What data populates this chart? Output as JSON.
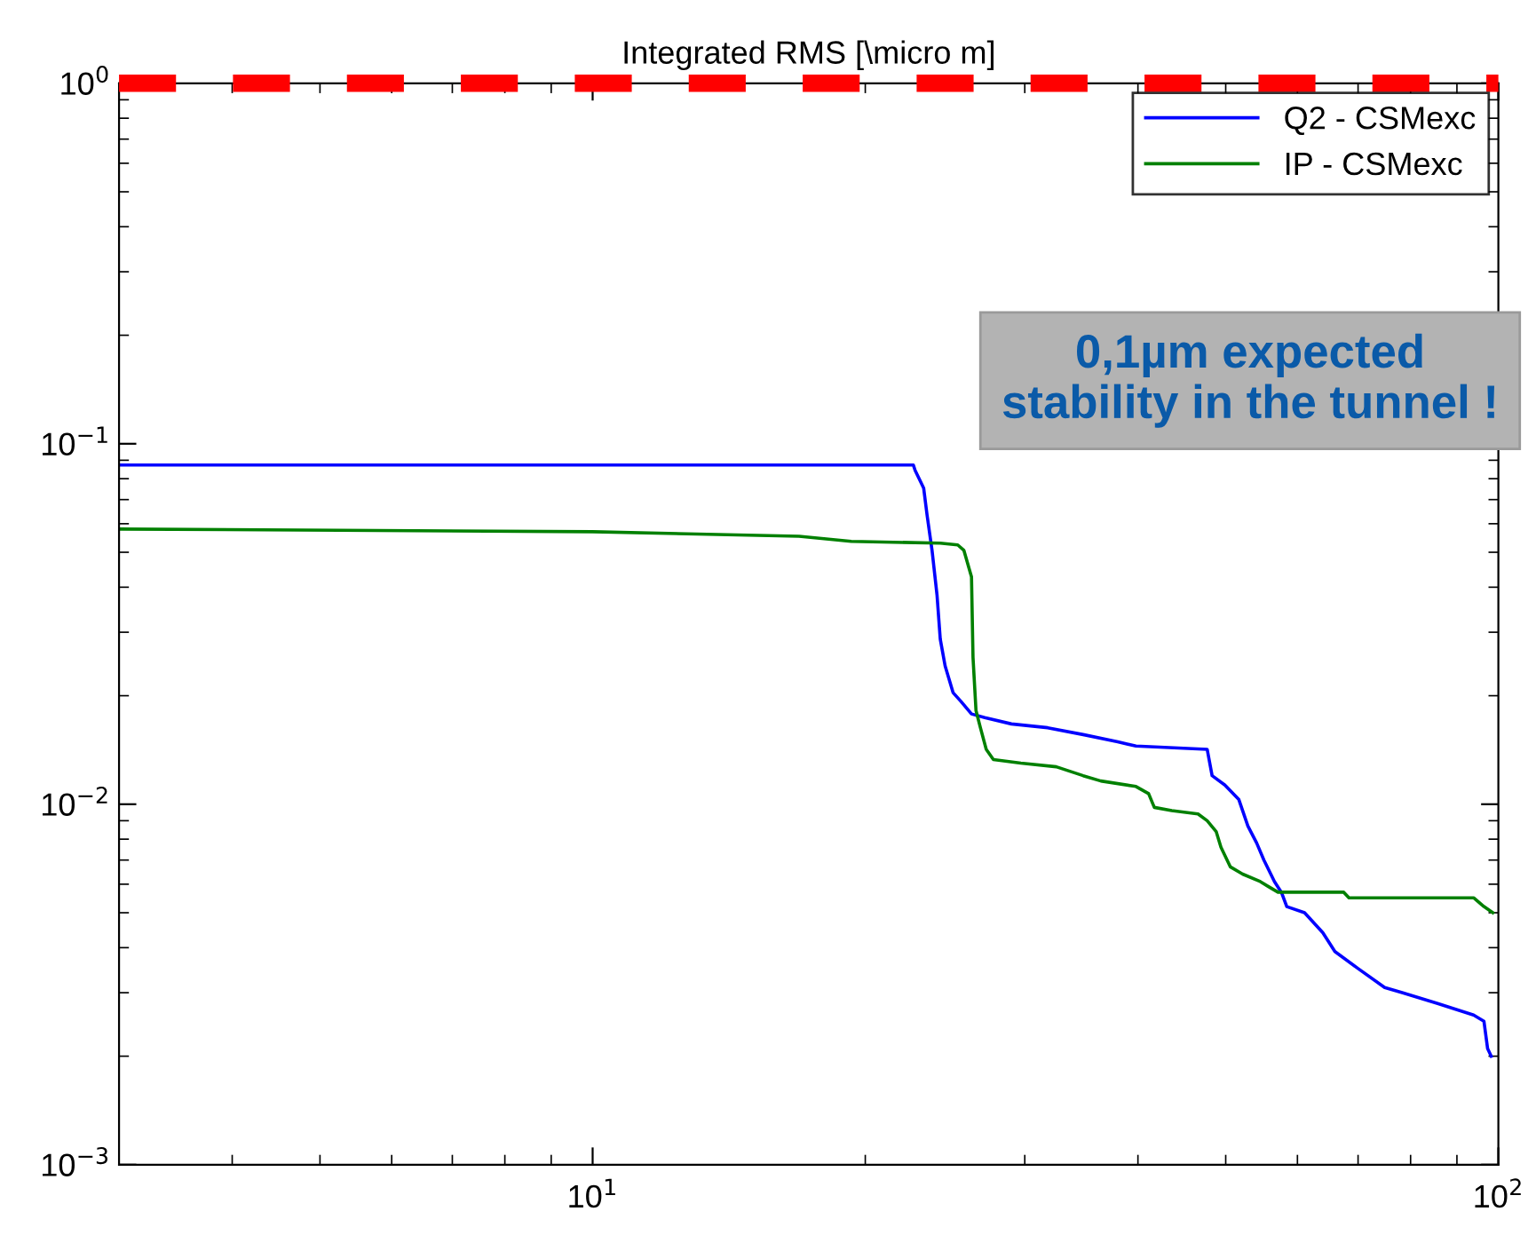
{
  "chart_data": {
    "type": "line",
    "title": "Integrated RMS [\\micro m]",
    "log": "xy",
    "grid": false,
    "legend": "top right",
    "line_style": "solid",
    "marker": "none",
    "xlim": [
      3,
      100
    ],
    "xticks": [
      {
        "value": 10,
        "label": "10$^{1}$"
      },
      {
        "value": 100,
        "label": "10$^{2}$"
      }
    ],
    "ylim": [
      0.001,
      1
    ],
    "yticks": [
      {
        "value": 0.001,
        "label": "10$^{−3}$"
      },
      {
        "value": 0.01,
        "label": "10$^{−2}$"
      },
      {
        "value": 0.1,
        "label": "10$^{−1}$"
      },
      {
        "value": 1,
        "label": "10$^{0}$"
      }
    ],
    "series": [
      {
        "name": "Q2 - CSMexc",
        "color": "#0000ff",
        "x": [
          3,
          22.6,
          22.7,
          23.2,
          23.4,
          23.7,
          24.0,
          24.2,
          24.5,
          25.0,
          25.5,
          26.2,
          27.1,
          29.0,
          31.8,
          34.8,
          38.0,
          39.8,
          47.7,
          48.3,
          49.9,
          51.7,
          52.9,
          54.1,
          55.1,
          56.6,
          57.6,
          58.4,
          61.1,
          64.0,
          66.0,
          70.0,
          74.9,
          78.3,
          85.7,
          93.9,
          96.4,
          97.3,
          98.2
        ],
        "values": [
          0.0873,
          0.0873,
          0.0844,
          0.0753,
          0.0635,
          0.0506,
          0.0381,
          0.0287,
          0.0242,
          0.0204,
          0.0193,
          0.0178,
          0.0174,
          0.0167,
          0.0163,
          0.0156,
          0.0149,
          0.0145,
          0.0142,
          0.012,
          0.0113,
          0.0103,
          0.0087,
          0.0078,
          0.007,
          0.0061,
          0.0057,
          0.0052,
          0.005,
          0.0044,
          0.0039,
          0.0035,
          0.0031,
          0.003,
          0.0028,
          0.0026,
          0.0025,
          0.0021,
          0.002
        ]
      },
      {
        "name": "IP - CSMexc",
        "color": "#008000",
        "x": [
          3,
          10,
          16.9,
          19.3,
          24.2,
          25.3,
          25.7,
          26.2,
          26.3,
          26.5,
          26.8,
          27.2,
          27.7,
          29.7,
          32.5,
          34.8,
          36.4,
          39.8,
          41.1,
          41.7,
          43.6,
          46.6,
          47.7,
          48.8,
          49.4,
          50.6,
          52.2,
          54.6,
          55.8,
          57.1,
          67.5,
          68.4,
          93.9,
          96.4,
          98.6
        ],
        "values": [
          0.058,
          0.057,
          0.0554,
          0.0536,
          0.053,
          0.0524,
          0.0506,
          0.0427,
          0.0256,
          0.0182,
          0.0163,
          0.0142,
          0.0133,
          0.013,
          0.0127,
          0.012,
          0.0116,
          0.0112,
          0.0107,
          0.0098,
          0.0096,
          0.0094,
          0.009,
          0.0084,
          0.0076,
          0.0067,
          0.0064,
          0.0061,
          0.0059,
          0.0057,
          0.0057,
          0.0055,
          0.0055,
          0.0052,
          0.005
        ]
      }
    ],
    "ref_lines": [
      {
        "axis": "y",
        "value": 1,
        "color": "#ff0000",
        "line_style": "dashed"
      }
    ],
    "annotations": [
      "0,1µm expected\nstability in the tunnel !"
    ]
  }
}
